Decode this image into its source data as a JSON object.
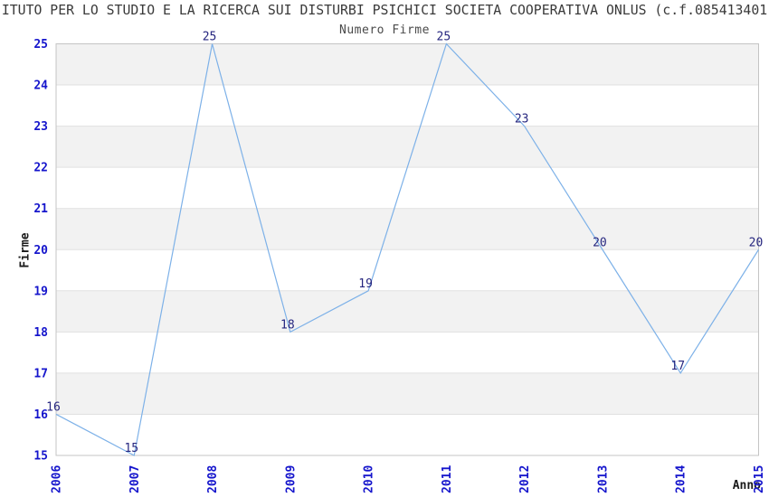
{
  "page": {
    "title": "ITUTO PER LO STUDIO E LA RICERCA SUI DISTURBI PSICHICI SOCIETA COOPERATIVA ONLUS (c.f.085413401",
    "subtitle": "Numero Firme"
  },
  "chart_data": {
    "type": "line",
    "title": "Numero Firme",
    "categories": [
      "2006",
      "2007",
      "2008",
      "2009",
      "2010",
      "2011",
      "2012",
      "2013",
      "2014",
      "2015"
    ],
    "values": [
      16,
      15,
      25,
      18,
      19,
      25,
      23,
      20,
      17,
      20
    ],
    "series": [
      {
        "name": "Numero Firme",
        "values": [
          16,
          15,
          25,
          18,
          19,
          25,
          23,
          20,
          17,
          20
        ]
      }
    ],
    "xlabel": "Anno",
    "ylabel": "Firme",
    "ylim": [
      15,
      25
    ],
    "y_ticks": [
      15,
      16,
      17,
      18,
      19,
      20,
      21,
      22,
      23,
      24,
      25
    ],
    "grid": true,
    "legend_position": "none",
    "data_labels_visible": true,
    "colors": {
      "line": "#7db1e8",
      "tick_label": "#1515cc",
      "data_label": "#26267f",
      "band": "#f2f2f2",
      "gridline": "#e0e0e0",
      "plot_border": "#c4c4c4",
      "title_text": "#3a3a3a",
      "axis_title": "#1a1a1a",
      "background": "#ffffff"
    }
  }
}
